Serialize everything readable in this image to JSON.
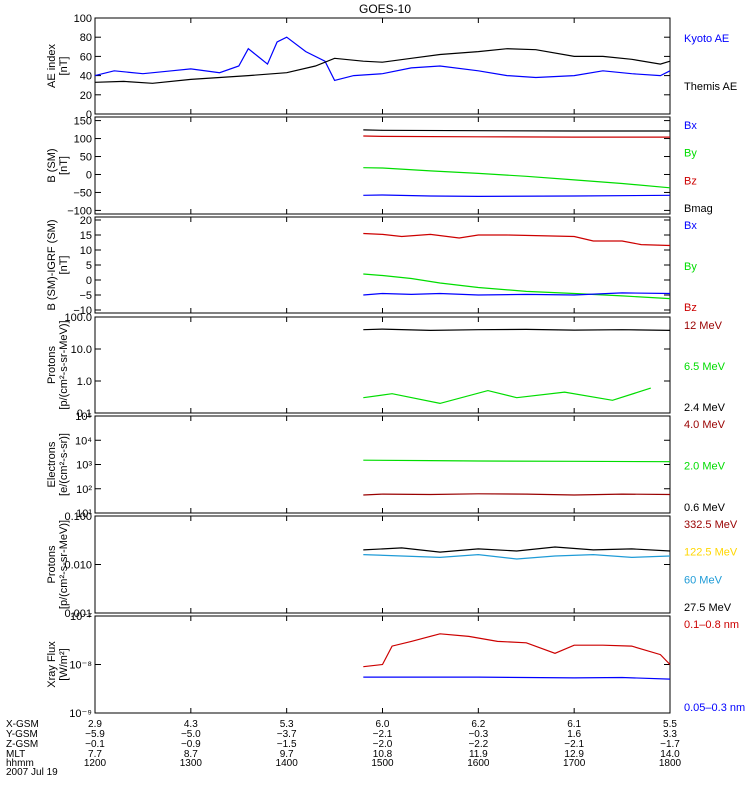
{
  "title": "GOES-10",
  "colors": {
    "black": "#000000",
    "blue": "#0000ff",
    "red": "#cc0000",
    "green": "#00dd00",
    "darkred": "#990000",
    "yellow": "#ffd700",
    "cyan": "#1e9bd7"
  },
  "ephemeris": {
    "row_labels": [
      "X-GSM",
      "Y-GSM",
      "Z-GSM",
      "MLT",
      "hhmm",
      "2007 Jul 19"
    ],
    "columns": [
      {
        "x": "2.9",
        "y": "-5.9",
        "z": "-0.1",
        "mlt": "7.7",
        "hhmm": "1200"
      },
      {
        "x": "4.3",
        "y": "-5.0",
        "z": "-0.9",
        "mlt": "8.7",
        "hhmm": "1300"
      },
      {
        "x": "5.3",
        "y": "-3.7",
        "z": "-1.5",
        "mlt": "9.7",
        "hhmm": "1400"
      },
      {
        "x": "6.0",
        "y": "-2.1",
        "z": "-2.0",
        "mlt": "10.8",
        "hhmm": "1500"
      },
      {
        "x": "6.2",
        "y": "-0.3",
        "z": "-2.2",
        "mlt": "11.9",
        "hhmm": "1600"
      },
      {
        "x": "6.1",
        "y": "1.6",
        "z": "-2.1",
        "mlt": "12.9",
        "hhmm": "1700"
      },
      {
        "x": "5.5",
        "y": "3.3",
        "z": "-1.7",
        "mlt": "14.0",
        "hhmm": "1800"
      }
    ]
  },
  "chart_data": [
    {
      "type": "line",
      "ylabel": [
        "AE index",
        "[nT]"
      ],
      "ylim": [
        0,
        100
      ],
      "log": false,
      "yticks": [
        0,
        20,
        40,
        60,
        80,
        100
      ],
      "ytick_labels": [
        "0",
        "20",
        "40",
        "60",
        "80",
        "100"
      ],
      "x_range_hours": [
        12,
        18
      ],
      "series": [
        {
          "name": "Kyoto AE",
          "color": "blue",
          "x": [
            12.0,
            12.2,
            12.5,
            12.8,
            13.0,
            13.3,
            13.5,
            13.6,
            13.7,
            13.8,
            13.9,
            14.0,
            14.2,
            14.4,
            14.5,
            14.7,
            15.0,
            15.3,
            15.6,
            16.0,
            16.3,
            16.6,
            17.0,
            17.3,
            17.6,
            17.9,
            18.0
          ],
          "y": [
            40,
            45,
            42,
            45,
            47,
            43,
            50,
            68,
            60,
            52,
            75,
            80,
            65,
            55,
            35,
            40,
            42,
            48,
            50,
            45,
            40,
            38,
            40,
            45,
            42,
            40,
            45
          ]
        },
        {
          "name": "Themis AE",
          "color": "black",
          "x": [
            12.0,
            12.3,
            12.6,
            13.0,
            13.3,
            13.6,
            14.0,
            14.3,
            14.5,
            14.8,
            15.0,
            15.3,
            15.6,
            16.0,
            16.3,
            16.6,
            17.0,
            17.3,
            17.6,
            17.9,
            18.0
          ],
          "y": [
            33,
            34,
            32,
            36,
            38,
            40,
            43,
            50,
            58,
            55,
            54,
            58,
            62,
            65,
            68,
            67,
            60,
            60,
            57,
            52,
            55
          ]
        }
      ]
    },
    {
      "type": "line",
      "ylabel": [
        "B (SM)",
        "[nT]"
      ],
      "ylim": [
        -110,
        160
      ],
      "log": false,
      "yticks": [
        150,
        100,
        50,
        0,
        -50,
        -100
      ],
      "ytick_labels": [
        "150",
        "100",
        "50",
        "0",
        "−50",
        "−100"
      ],
      "legend": [
        {
          "text": "Bx",
          "color": "blue"
        },
        {
          "text": "By",
          "color": "green"
        },
        {
          "text": "Bz",
          "color": "red"
        },
        {
          "text": "Bmag",
          "color": "black"
        }
      ],
      "series": [
        {
          "name": "Bmag",
          "color": "black",
          "x": [
            14.8,
            15.0,
            16.0,
            17.0,
            18.0
          ],
          "y": [
            124,
            123,
            122,
            121,
            121
          ]
        },
        {
          "name": "Bz",
          "color": "red",
          "x": [
            14.8,
            15.0,
            16.0,
            17.0,
            18.0
          ],
          "y": [
            107,
            106,
            105,
            104,
            104
          ]
        },
        {
          "name": "By",
          "color": "green",
          "x": [
            14.8,
            15.0,
            15.5,
            16.0,
            16.5,
            17.0,
            17.5,
            18.0
          ],
          "y": [
            19,
            18,
            10,
            3,
            -5,
            -15,
            -25,
            -37
          ]
        },
        {
          "name": "Bx",
          "color": "blue",
          "x": [
            14.8,
            15.0,
            15.5,
            16.0,
            17.0,
            18.0
          ],
          "y": [
            -58,
            -57,
            -60,
            -61,
            -60,
            -58
          ]
        }
      ]
    },
    {
      "type": "line",
      "ylabel": [
        "B (SM)-IGRF (SM)",
        "[nT]"
      ],
      "ylim": [
        -11,
        21
      ],
      "log": false,
      "yticks": [
        20,
        15,
        10,
        5,
        0,
        -5,
        -10
      ],
      "ytick_labels": [
        "20",
        "15",
        "10",
        "5",
        "0",
        "−5",
        "−10"
      ],
      "legend": [
        {
          "text": "Bx",
          "color": "blue"
        },
        {
          "text": "By",
          "color": "green"
        },
        {
          "text": "Bz",
          "color": "red"
        }
      ],
      "series": [
        {
          "name": "Bz",
          "color": "red",
          "x": [
            14.8,
            15.0,
            15.2,
            15.5,
            15.8,
            16.0,
            16.3,
            16.6,
            17.0,
            17.2,
            17.5,
            17.7,
            18.0
          ],
          "y": [
            15.5,
            15.2,
            14.5,
            15.2,
            14.0,
            15.0,
            15.0,
            14.8,
            14.5,
            13.0,
            13.0,
            11.8,
            11.5
          ]
        },
        {
          "name": "By",
          "color": "green",
          "x": [
            14.8,
            15.0,
            15.3,
            15.6,
            16.0,
            16.5,
            17.0,
            17.5,
            18.0
          ],
          "y": [
            2,
            1.5,
            0.5,
            -1,
            -2.5,
            -3.8,
            -4.5,
            -5.3,
            -6.2
          ]
        },
        {
          "name": "Bx",
          "color": "blue",
          "x": [
            14.8,
            15.0,
            15.3,
            15.6,
            16.0,
            16.5,
            17.0,
            17.5,
            18.0
          ],
          "y": [
            -5,
            -4.5,
            -4.8,
            -4.5,
            -5,
            -4.8,
            -5,
            -4.3,
            -4.5
          ]
        }
      ]
    },
    {
      "type": "line",
      "ylabel": [
        "Protons",
        "[p/(cm²-s-sr-MeV)]"
      ],
      "log": true,
      "ylim": [
        0.1,
        100
      ],
      "yticks": [
        100,
        10,
        1,
        0.1
      ],
      "ytick_labels": [
        "100.0",
        "10.0",
        "1.0",
        "0.1"
      ],
      "legend": [
        {
          "text": "12 MeV",
          "color": "darkred"
        },
        {
          "text": "6.5 MeV",
          "color": "green"
        },
        {
          "text": "2.4 MeV",
          "color": "black"
        }
      ],
      "series": [
        {
          "name": "2.4 MeV",
          "color": "black",
          "x": [
            14.8,
            15.0,
            15.5,
            16.0,
            16.5,
            17.0,
            17.5,
            18.0
          ],
          "y": [
            40,
            42,
            38,
            40,
            41,
            39,
            40,
            38
          ]
        },
        {
          "name": "6.5 MeV",
          "color": "green",
          "x": [
            14.8,
            15.1,
            15.6,
            16.1,
            16.4,
            16.9,
            17.4,
            17.8
          ],
          "y": [
            0.3,
            0.4,
            0.2,
            0.5,
            0.3,
            0.45,
            0.25,
            0.6
          ]
        }
      ]
    },
    {
      "type": "line",
      "ylabel": [
        "Electrons",
        "[e/(cm²-s-sr)]"
      ],
      "log": true,
      "ylim": [
        10,
        100000
      ],
      "yticks": [
        100000,
        10000,
        1000,
        100,
        10
      ],
      "ytick_labels": [
        "10⁵",
        "10⁴",
        "10³",
        "10²",
        "10¹"
      ],
      "legend": [
        {
          "text": "4.0 MeV",
          "color": "darkred"
        },
        {
          "text": "2.0 MeV",
          "color": "green"
        },
        {
          "text": "0.6 MeV",
          "color": "black"
        }
      ],
      "series": [
        {
          "name": "2.0 MeV",
          "color": "green",
          "x": [
            14.8,
            15.5,
            16.0,
            17.0,
            18.0
          ],
          "y": [
            1500,
            1450,
            1400,
            1350,
            1300
          ]
        },
        {
          "name": "4.0 MeV",
          "color": "darkred",
          "x": [
            14.8,
            15.0,
            15.5,
            16.0,
            16.5,
            17.0,
            17.5,
            18.0
          ],
          "y": [
            55,
            60,
            58,
            62,
            60,
            55,
            60,
            58
          ]
        }
      ]
    },
    {
      "type": "line",
      "ylabel": [
        "Protons",
        "[p/(cm²-s-sr-MeV)]"
      ],
      "log": true,
      "ylim": [
        0.001,
        0.1
      ],
      "yticks": [
        0.1,
        0.01,
        0.001
      ],
      "ytick_labels": [
        "0.100",
        "0.010",
        "0.001"
      ],
      "legend": [
        {
          "text": "332.5 MeV",
          "color": "darkred"
        },
        {
          "text": "122.5 MeV",
          "color": "yellow"
        },
        {
          "text": "60 MeV",
          "color": "cyan"
        },
        {
          "text": "27.5 MeV",
          "color": "black"
        }
      ],
      "series": [
        {
          "name": "27.5 MeV",
          "color": "black",
          "x": [
            14.8,
            15.2,
            15.6,
            16.0,
            16.4,
            16.8,
            17.2,
            17.6,
            18.0
          ],
          "y": [
            0.02,
            0.022,
            0.018,
            0.021,
            0.019,
            0.023,
            0.02,
            0.021,
            0.019
          ]
        },
        {
          "name": "60 MeV",
          "color": "cyan",
          "x": [
            14.8,
            15.2,
            15.6,
            16.0,
            16.4,
            16.8,
            17.2,
            17.6,
            18.0
          ],
          "y": [
            0.016,
            0.015,
            0.014,
            0.016,
            0.013,
            0.015,
            0.016,
            0.014,
            0.015
          ]
        }
      ]
    },
    {
      "type": "line",
      "ylabel": [
        "Xray Flux",
        "[W/m²]"
      ],
      "log": true,
      "ylim": [
        1e-09,
        1e-07
      ],
      "yticks": [
        1e-07,
        1e-08,
        1e-09
      ],
      "ytick_labels": [
        "10⁻⁷",
        "10⁻⁸",
        "10⁻⁹"
      ],
      "legend": [
        {
          "text": "0.1–0.8 nm",
          "color": "red"
        },
        {
          "text": "0.05–0.3 nm",
          "color": "blue"
        }
      ],
      "series": [
        {
          "name": "0.1–0.8 nm",
          "color": "red",
          "x": [
            14.8,
            15.0,
            15.1,
            15.3,
            15.6,
            15.9,
            16.2,
            16.5,
            16.8,
            17.0,
            17.3,
            17.6,
            17.9,
            18.0
          ],
          "y": [
            9e-09,
            1e-08,
            2.4e-08,
            3e-08,
            4.3e-08,
            3.8e-08,
            3e-08,
            2.8e-08,
            1.7e-08,
            2.5e-08,
            2.5e-08,
            2.4e-08,
            1.6e-08,
            1e-08
          ]
        },
        {
          "name": "0.05–0.3 nm",
          "color": "blue",
          "x": [
            14.8,
            15.5,
            16.0,
            17.0,
            17.5,
            18.0
          ],
          "y": [
            5.5e-09,
            5.5e-09,
            5.5e-09,
            5.3e-09,
            5.4e-09,
            5e-09
          ]
        }
      ]
    }
  ]
}
